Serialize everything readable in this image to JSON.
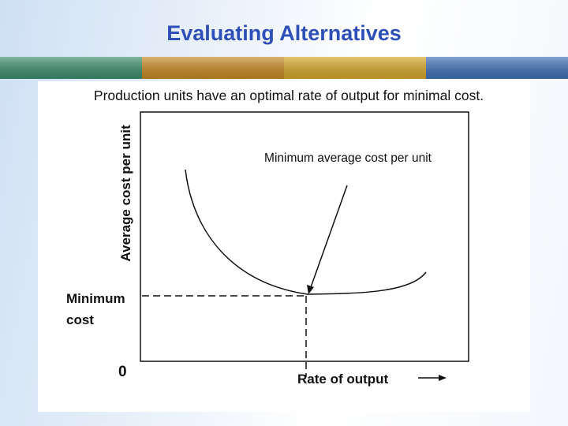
{
  "header": {
    "title": "Evaluating Alternatives"
  },
  "diagram": {
    "caption": "Production units have an optimal rate of output for minimal cost.",
    "y_axis_label": "Average cost per unit",
    "annotation": "Minimum average cost per unit",
    "min_cost_label": [
      "Minimum",
      "cost"
    ],
    "origin_label": "0",
    "x_axis_label": "Rate of output"
  }
}
